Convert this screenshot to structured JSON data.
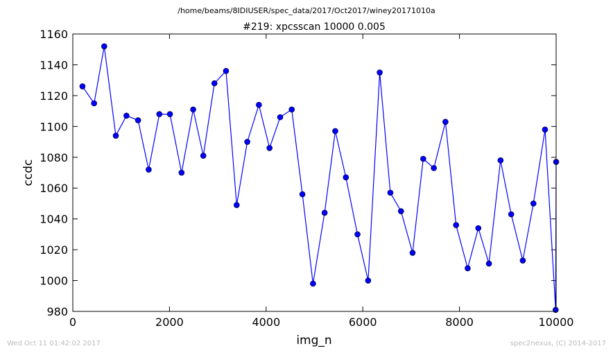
{
  "chart_data": {
    "type": "line",
    "suptitle": "/home/beams/8IDIUSER/spec_data/2017/Oct2017/winey20171010a",
    "title": "#219: xpcsscan 10000 0.005",
    "xlabel": "img_n",
    "ylabel": "ccdc",
    "xlim": [
      0,
      10000
    ],
    "ylim": [
      980,
      1160
    ],
    "xticks": [
      0,
      2000,
      4000,
      6000,
      8000,
      10000
    ],
    "yticks": [
      980,
      1000,
      1020,
      1040,
      1060,
      1080,
      1100,
      1120,
      1140,
      1160
    ],
    "grid": false,
    "line_color": "#0000ff",
    "marker_color": "#0000ff",
    "series": [
      {
        "x": [
          200,
          440,
          650,
          890,
          1110,
          1350,
          1570,
          1790,
          2010,
          2250,
          2490,
          2700,
          2930,
          3170,
          3390,
          3610,
          3850,
          4070,
          4290,
          4530,
          4750,
          4970,
          5210,
          5430,
          5650,
          5890,
          6110,
          6350,
          6570,
          6790,
          7030,
          7250,
          7470,
          7710,
          7930,
          8170,
          8390,
          8610,
          8850,
          9070,
          9310,
          9530,
          9770,
          9990,
          10000
        ],
        "y": [
          1126,
          1115,
          1152,
          1094,
          1107,
          1104,
          1072,
          1108,
          1108,
          1070,
          1111,
          1081,
          1128,
          1136,
          1049,
          1090,
          1114,
          1086,
          1106,
          1111,
          1056,
          998,
          1044,
          1097,
          1067,
          1030,
          1000,
          1135,
          1057,
          1045,
          1018,
          1079,
          1073,
          1103,
          1036,
          1008,
          1034,
          1011,
          1078,
          1043,
          1013,
          1050,
          1098,
          981,
          1077
        ]
      }
    ]
  },
  "footer": {
    "timestamp": "Wed Oct 11 01:42:02 2017",
    "credit": "spec2nexus, (C) 2014-2017"
  }
}
